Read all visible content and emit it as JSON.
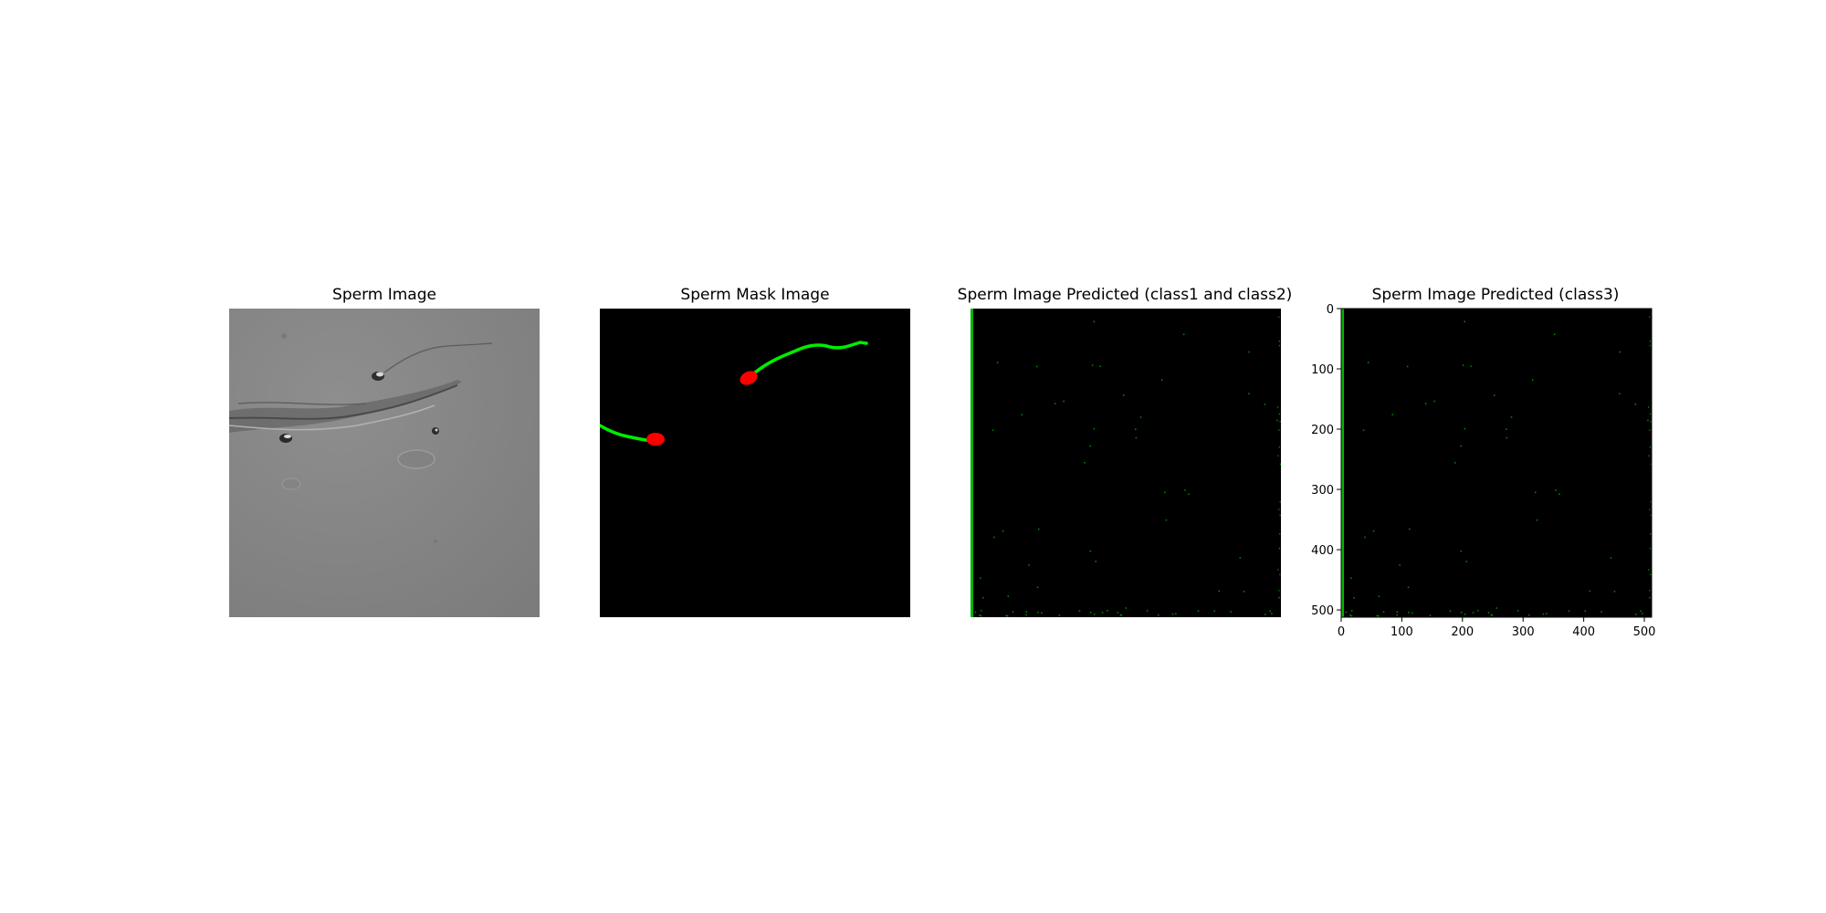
{
  "figure": {
    "panels": [
      {
        "title": "Sperm Image",
        "kind": "micrograph"
      },
      {
        "title": "Sperm Mask Image",
        "kind": "mask"
      },
      {
        "title": "Sperm Image Predicted (class1 and class2)",
        "kind": "prediction"
      },
      {
        "title": "Sperm Image Predicted (class3)",
        "kind": "prediction"
      }
    ],
    "axes4": {
      "x_ticks": [
        "0",
        "100",
        "200",
        "300",
        "400",
        "500"
      ],
      "y_ticks": [
        "0",
        "100",
        "200",
        "300",
        "400",
        "500"
      ],
      "xlim": [
        0,
        512
      ],
      "ylim": [
        512,
        0
      ]
    },
    "colors": {
      "background": "#000000",
      "tail": "#00ee00",
      "head": "#ff0000",
      "micrograph_gray": "#8a8a8a"
    }
  }
}
